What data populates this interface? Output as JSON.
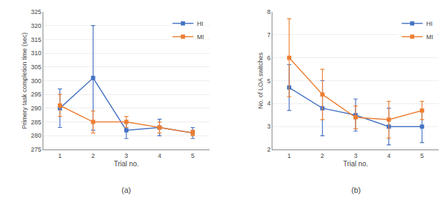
{
  "chart_data": [
    {
      "type": "line",
      "subtitle": "(a)",
      "x_label": "Trial no.",
      "y_label": "Primery task completion time (sec)",
      "x": [
        1,
        2,
        3,
        4,
        5
      ],
      "xlim": [
        0.5,
        5.5
      ],
      "xticks": [
        1,
        2,
        3,
        4,
        5
      ],
      "ylim": [
        275,
        325
      ],
      "yticks": [
        275,
        280,
        285,
        290,
        295,
        300,
        305,
        310,
        315,
        320,
        325
      ],
      "grid": "y",
      "legend": "upper right",
      "series": [
        {
          "name": "HI",
          "color": "#4472C4",
          "marker": "square",
          "values": [
            290,
            301,
            282,
            283,
            281
          ],
          "errors": [
            7,
            19,
            3,
            3,
            2
          ]
        },
        {
          "name": "MI",
          "color": "#ED7D31",
          "marker": "square",
          "values": [
            291,
            285,
            285,
            283,
            281
          ],
          "errors": [
            4,
            4,
            2,
            2,
            1
          ]
        }
      ]
    },
    {
      "type": "line",
      "subtitle": "(b)",
      "x_label": "Trial no.",
      "y_label": "No. of LOA switches",
      "x": [
        1,
        2,
        3,
        4,
        5
      ],
      "xlim": [
        0.5,
        5.5
      ],
      "xticks": [
        1,
        2,
        3,
        4,
        5
      ],
      "ylim": [
        2,
        8
      ],
      "yticks": [
        2,
        3,
        4,
        5,
        6,
        7,
        8
      ],
      "grid": "y",
      "legend": "upper right",
      "series": [
        {
          "name": "HI",
          "color": "#4472C4",
          "marker": "square",
          "values": [
            4.7,
            3.8,
            3.5,
            3.0,
            3.0
          ],
          "errors": [
            1.0,
            1.2,
            0.7,
            0.8,
            0.7
          ]
        },
        {
          "name": "MI",
          "color": "#ED7D31",
          "marker": "square",
          "values": [
            6.0,
            4.4,
            3.4,
            3.3,
            3.7
          ],
          "errors": [
            1.7,
            1.1,
            0.5,
            0.8,
            0.4
          ]
        }
      ]
    }
  ]
}
